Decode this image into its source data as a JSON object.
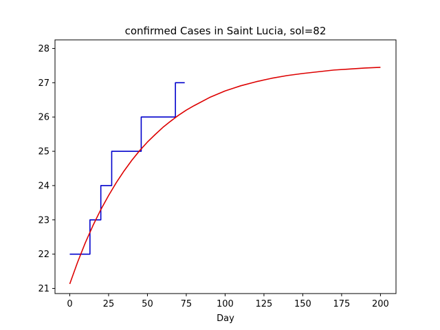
{
  "chart_data": {
    "type": "line",
    "title": "confirmed Cases in Saint Lucia, sol=82",
    "xlabel": "Day",
    "ylabel": "",
    "xlim": [
      -9.5,
      210
    ],
    "ylim": [
      20.85,
      28.25
    ],
    "x_ticks": [
      0,
      25,
      50,
      75,
      100,
      125,
      150,
      175,
      200
    ],
    "y_ticks": [
      21,
      22,
      23,
      24,
      25,
      26,
      27,
      28
    ],
    "grid": false,
    "series": [
      {
        "color": "#0000cc",
        "x": [
          0,
          13,
          13,
          20,
          20,
          27,
          27,
          46,
          46,
          68,
          68,
          74
        ],
        "y": [
          22,
          22,
          23,
          23,
          24,
          24,
          25,
          25,
          26,
          26,
          27,
          27
        ]
      },
      {
        "color": "#dd0000",
        "x": [
          0,
          5,
          10,
          15,
          20,
          25,
          30,
          35,
          40,
          45,
          50,
          55,
          60,
          65,
          70,
          75,
          80,
          90,
          100,
          110,
          120,
          130,
          140,
          150,
          160,
          170,
          180,
          190,
          200
        ],
        "y": [
          21.13,
          21.76,
          22.33,
          22.84,
          23.3,
          23.71,
          24.09,
          24.43,
          24.74,
          25.02,
          25.27,
          25.49,
          25.7,
          25.88,
          26.05,
          26.2,
          26.33,
          26.57,
          26.76,
          26.91,
          27.03,
          27.13,
          27.21,
          27.27,
          27.32,
          27.37,
          27.4,
          27.43,
          27.45
        ]
      }
    ]
  }
}
